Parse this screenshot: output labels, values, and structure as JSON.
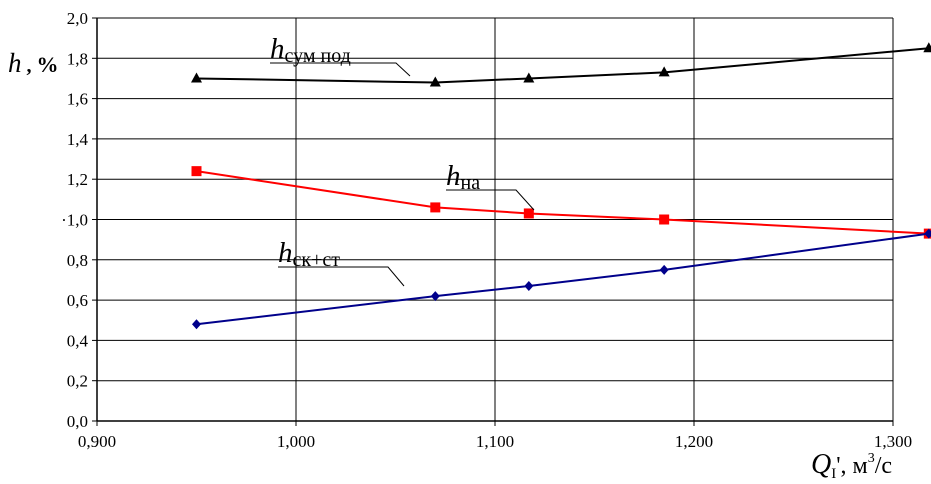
{
  "chart_data": {
    "type": "line",
    "x": [
      0.95,
      1.07,
      1.117,
      1.185,
      1.318
    ],
    "xlim": [
      0.9,
      1.3
    ],
    "ylim": [
      0.0,
      2.0
    ],
    "xticks": [
      "0,900",
      "1,000",
      "1,100",
      "1,200",
      "1,300"
    ],
    "yticks": [
      "0,0",
      "0,2",
      "0,4",
      "0,6",
      "0,8",
      "·1,0",
      "1,2",
      "1,4",
      "1,6",
      "1,8",
      "2,0"
    ],
    "grid": true,
    "ylabel": {
      "main": "h",
      "sep": " , ",
      "unit": "%"
    },
    "xlabel": {
      "main": "Q",
      "sub": "I",
      "rest": "', м",
      "sup": "3",
      "end": "/c"
    },
    "series": [
      {
        "name": "h",
        "name_sub": "сум под",
        "color": "#000000",
        "marker": "triangle",
        "values": [
          1.7,
          1.68,
          1.7,
          1.73,
          1.85
        ]
      },
      {
        "name": "h",
        "name_sub": "на",
        "color": "#ff0000",
        "marker": "square",
        "values": [
          1.24,
          1.06,
          1.03,
          1.0,
          0.93
        ]
      },
      {
        "name": "h",
        "name_sub": "ск+ст",
        "color": "#00008b",
        "marker": "diamond",
        "values": [
          0.48,
          0.62,
          0.67,
          0.75,
          0.93
        ]
      }
    ]
  }
}
